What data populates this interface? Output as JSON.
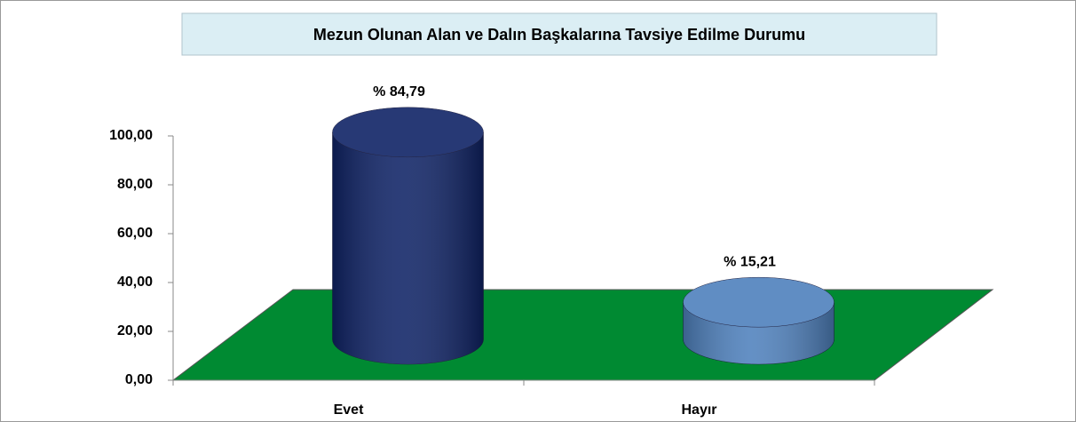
{
  "chart_data": {
    "type": "bar",
    "title": "Mezun Olunan Alan ve Dalın Başkalarına Tavsiye Edilme Durumu",
    "categories": [
      "Evet",
      "Hayır"
    ],
    "values": [
      84.79,
      15.21
    ],
    "value_labels": [
      "% 84,79",
      "% 15,21"
    ],
    "colors": [
      "#0f2366",
      "#4f81bd"
    ],
    "ylim": [
      0,
      100
    ],
    "yticks": [
      {
        "value": 0,
        "label": "0,00"
      },
      {
        "value": 20,
        "label": "20,00"
      },
      {
        "value": 40,
        "label": "40,00"
      },
      {
        "value": 60,
        "label": "60,00"
      },
      {
        "value": 80,
        "label": "80,00"
      },
      {
        "value": 100,
        "label": "100,00"
      }
    ]
  }
}
